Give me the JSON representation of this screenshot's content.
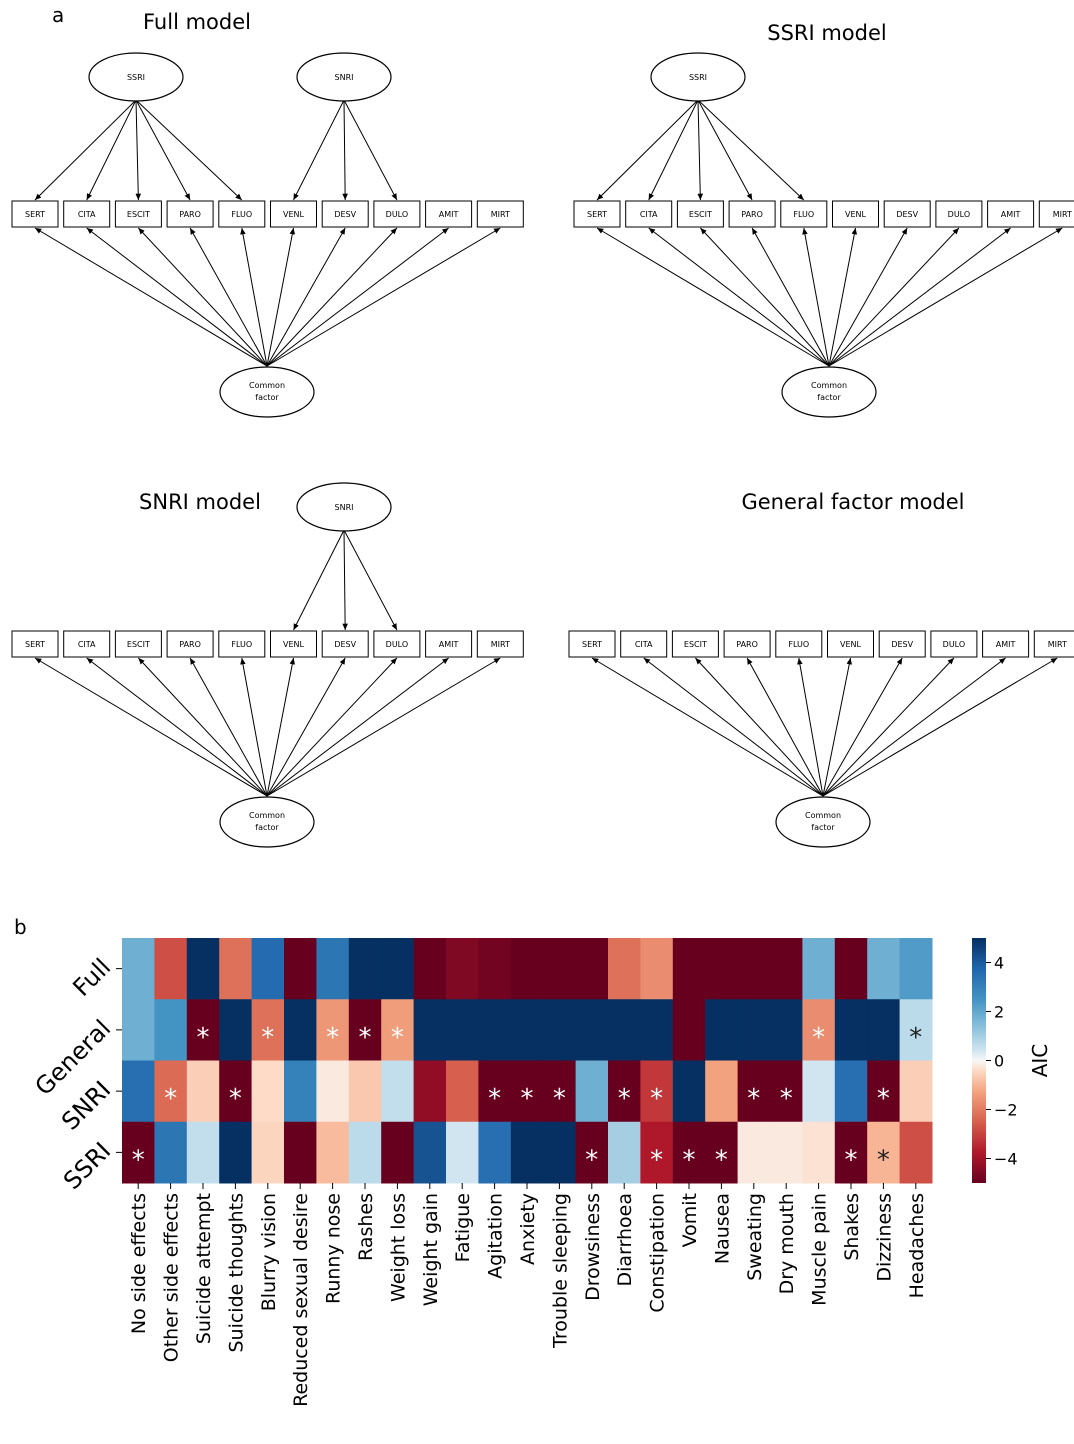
{
  "panel_a": {
    "label": "a",
    "indicators": [
      "SERT",
      "CITA",
      "ESCIT",
      "PARO",
      "FLUO",
      "VENL",
      "DESV",
      "DULO",
      "AMIT",
      "MIRT"
    ],
    "common_factor": [
      "Common",
      "factor"
    ],
    "models": [
      {
        "id": "full",
        "title": "Full model",
        "latents": [
          {
            "name": "SSRI",
            "loads": [
              0,
              1,
              2,
              3,
              4
            ]
          },
          {
            "name": "SNRI",
            "loads": [
              5,
              6,
              7
            ]
          }
        ]
      },
      {
        "id": "ssri",
        "title": "SSRI model",
        "latents": [
          {
            "name": "SSRI",
            "loads": [
              0,
              1,
              2,
              3,
              4
            ]
          }
        ]
      },
      {
        "id": "snri",
        "title": "SNRI model",
        "latents": [
          {
            "name": "SNRI",
            "loads": [
              5,
              6,
              7
            ]
          }
        ]
      },
      {
        "id": "general",
        "title": "General factor model",
        "latents": []
      }
    ]
  },
  "panel_b": {
    "label": "b",
    "chart_data": {
      "type": "heatmap",
      "rows": [
        "Full",
        "General",
        "SNRI",
        "SSRI"
      ],
      "columns": [
        "No side effects",
        "Other side effects",
        "Suicide attempt",
        "Suicide thoughts",
        "Blurry vision",
        "Reduced sexual desire",
        "Runny nose",
        "Rashes",
        "Weight loss",
        "Weight gain",
        "Fatigue",
        "Agitation",
        "Anxiety",
        "Trouble sleeping",
        "Drowsiness",
        "Diarrhoea",
        "Constipation",
        "Vomit",
        "Nausea",
        "Sweating",
        "Dry mouth",
        "Muscle pain",
        "Shakes",
        "Dizziness",
        "Headaches"
      ],
      "values": [
        [
          1.8,
          -2.8,
          5,
          -2.2,
          3.6,
          -5,
          3.3,
          5,
          5,
          -5,
          -4.6,
          -4.8,
          -5,
          -5,
          -5,
          -2.2,
          -1.7,
          -5,
          -5,
          -5,
          -5,
          1.8,
          -5,
          1.8,
          2.3
        ],
        [
          1.8,
          2.5,
          -5,
          5,
          -2.2,
          5,
          -1.5,
          -5,
          -1.4,
          5,
          5,
          5,
          5,
          5,
          5,
          5,
          5,
          -5,
          5,
          5,
          5,
          -1.7,
          5,
          5,
          0.7
        ],
        [
          3.5,
          -2.3,
          -0.6,
          -5,
          -0.4,
          3.0,
          -0.2,
          -0.7,
          0.6,
          -4.3,
          -2.5,
          -5,
          -5,
          -5,
          1.8,
          -5,
          -3.2,
          5,
          -1.3,
          -5,
          -5,
          0.4,
          3.5,
          -5,
          -0.6
        ],
        [
          -5,
          3.3,
          0.6,
          5,
          -0.5,
          -5,
          -0.9,
          0.7,
          -5,
          4.2,
          0.4,
          3.5,
          5,
          5,
          -5,
          1.0,
          -3.8,
          -5,
          -5,
          -0.2,
          -0.2,
          -0.3,
          -5,
          -1.0,
          -2.8
        ]
      ],
      "significant": [
        [],
        [
          2,
          4,
          6,
          7,
          8,
          21,
          24
        ],
        [
          1,
          3,
          11,
          12,
          13,
          15,
          16,
          19,
          20,
          23
        ],
        [
          0,
          14,
          16,
          17,
          18,
          22,
          23
        ]
      ],
      "star": "*",
      "colorbar": {
        "label": "AIC",
        "ticks": [
          4,
          2,
          0,
          -2,
          -4
        ],
        "tick_labels": [
          "4",
          "2",
          "0",
          "−2",
          "−4"
        ],
        "range": [
          -5,
          5
        ],
        "colormap": "RdBu"
      }
    }
  }
}
